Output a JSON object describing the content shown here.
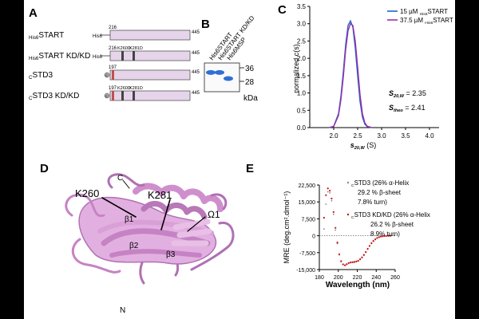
{
  "panels": {
    "A": "A",
    "B": "B",
    "C": "C",
    "D": "D",
    "E": "E"
  },
  "panelA": {
    "rows": [
      {
        "label_pre": "His6",
        "label_main": "START",
        "tag": "His6",
        "start": "216",
        "end": "445",
        "kd": false
      },
      {
        "label_pre": "His6",
        "label_main": "START KD/KD",
        "tag": "His6",
        "start": "216",
        "end": "445",
        "kd": true,
        "mut1": "K260D",
        "mut2": "K281D"
      },
      {
        "label_pre": "C",
        "label_main": "STD3",
        "tag": "C",
        "start": "197",
        "end": "445",
        "kd": false
      },
      {
        "label_pre": "C",
        "label_main": "STD3 KD/KD",
        "tag": "C",
        "start": "197",
        "end": "445",
        "kd": true,
        "mut1": "K260D",
        "mut2": "K281D"
      }
    ],
    "colors": {
      "bar": "#e6d5ea",
      "bar_stroke": "#555555",
      "tag": "#aaaaaa",
      "mark_dark": "#444444",
      "mark_red": "#c0504d"
    }
  },
  "panelB": {
    "lanes": [
      "His6START",
      "His6START KD/KD",
      "His6MSP"
    ],
    "markers": [
      {
        "label": "36",
        "kda": 36
      },
      {
        "label": "28",
        "kda": 28
      }
    ],
    "unit": "kDa",
    "band_color": "#2f6fd6"
  },
  "panelC": {
    "chart_data": {
      "type": "line",
      "xlabel": "s20,W (S)",
      "ylabel": "normalized c(s)",
      "xlim": [
        1.5,
        4.2
      ],
      "ylim": [
        0,
        3.5
      ],
      "xticks": [
        2.0,
        2.5,
        3.0,
        3.5,
        4.0
      ],
      "yticks": [
        0.0,
        0.5,
        1.0,
        1.5,
        2.0,
        2.5,
        3.0,
        3.5
      ],
      "legend": "top-right",
      "series": [
        {
          "name": "15 µM His6START",
          "color": "#1f66c9",
          "x": [
            1.9,
            2.0,
            2.1,
            2.15,
            2.2,
            2.25,
            2.3,
            2.35,
            2.4,
            2.45,
            2.5,
            2.55,
            2.6,
            2.65,
            2.7,
            2.8
          ],
          "y": [
            0,
            0.04,
            0.4,
            0.9,
            1.6,
            2.4,
            2.95,
            3.08,
            2.9,
            2.3,
            1.5,
            0.75,
            0.3,
            0.1,
            0.03,
            0
          ]
        },
        {
          "name": "37.5 µM His6START",
          "color": "#9b2fa8",
          "x": [
            1.9,
            2.0,
            2.1,
            2.15,
            2.2,
            2.25,
            2.3,
            2.35,
            2.4,
            2.45,
            2.5,
            2.55,
            2.6,
            2.65,
            2.7,
            2.8
          ],
          "y": [
            0,
            0.03,
            0.35,
            0.8,
            1.45,
            2.25,
            2.8,
            3.0,
            2.95,
            2.5,
            1.75,
            0.95,
            0.4,
            0.14,
            0.04,
            0
          ]
        }
      ],
      "annotations": {
        "s20w": "S20,W = 2.35",
        "stheo": "Stheo = 2.41"
      }
    },
    "legend_text": [
      "15 µM His6START",
      "37.5 µM His6START"
    ],
    "ann_s20w": "= 2.35",
    "ann_stheo": "= 2.41"
  },
  "panelD": {
    "labels": {
      "c": "C",
      "n": "N",
      "k260": "K260",
      "k281": "K281",
      "b1": "β1",
      "b2": "β2",
      "b3": "β3",
      "omega": "Ω1"
    },
    "ribbon_color": "#d9a0d8"
  },
  "panelE": {
    "chart_data": {
      "type": "scatter",
      "xlabel": "Wavelength (nm)",
      "ylabel": "MRE (deg.cm².dmol⁻¹)",
      "xlim": [
        180,
        260
      ],
      "ylim": [
        -15000,
        22500
      ],
      "xticks": [
        180,
        200,
        220,
        240,
        260
      ],
      "yticks": [
        -15000,
        -7500,
        0,
        7500,
        15000,
        22500
      ],
      "ytick_labels": [
        "-15,000",
        "-7,500",
        "0",
        "7,500",
        "15,000",
        "22,500"
      ],
      "series": [
        {
          "name": "CSTD3",
          "color": "#888888",
          "x": [
            185,
            187,
            189,
            191,
            193,
            195,
            197,
            199,
            201,
            203,
            205,
            207,
            209,
            211,
            213,
            215,
            217,
            219,
            221,
            223,
            225,
            227,
            229,
            231,
            233,
            235,
            237,
            239,
            241,
            243,
            245,
            247,
            249,
            251,
            253,
            255
          ],
          "y": [
            3000,
            14000,
            19500,
            19000,
            15500,
            9500,
            2500,
            -3500,
            -8500,
            -11500,
            -12800,
            -13200,
            -12800,
            -12300,
            -12000,
            -11900,
            -11800,
            -11600,
            -11300,
            -10600,
            -9800,
            -8700,
            -7400,
            -6000,
            -4700,
            -3500,
            -2500,
            -1700,
            -1100,
            -700,
            -400,
            -250,
            -150,
            -80,
            -40,
            -20
          ]
        },
        {
          "name": "CSTD3 KD/KD",
          "color": "#cc1111",
          "x": [
            185,
            187,
            189,
            191,
            193,
            195,
            197,
            199,
            201,
            203,
            205,
            207,
            209,
            211,
            213,
            215,
            217,
            219,
            221,
            223,
            225,
            227,
            229,
            231,
            233,
            235,
            237,
            239,
            241,
            243,
            245,
            247,
            249,
            251,
            253,
            255
          ],
          "y": [
            8000,
            18000,
            21000,
            20000,
            16500,
            10500,
            3500,
            -3000,
            -8200,
            -11300,
            -12700,
            -13100,
            -12600,
            -12100,
            -11800,
            -11700,
            -11600,
            -11400,
            -11100,
            -10400,
            -9600,
            -8500,
            -7200,
            -5800,
            -4500,
            -3300,
            -2300,
            -1600,
            -1000,
            -600,
            -350,
            -200,
            -120,
            -60,
            -30,
            -10
          ]
        }
      ]
    },
    "legend": [
      {
        "pre": "C",
        "main": "STD3 (26% α-Helix",
        "line2": "29.2 % β-sheet",
        "line3": "7.8% turn)"
      },
      {
        "pre": "C",
        "main": "STD3 KD/KD (26% α-Helix",
        "line2": "26.2 % β-sheet",
        "line3": "8.9% turn)"
      }
    ]
  }
}
